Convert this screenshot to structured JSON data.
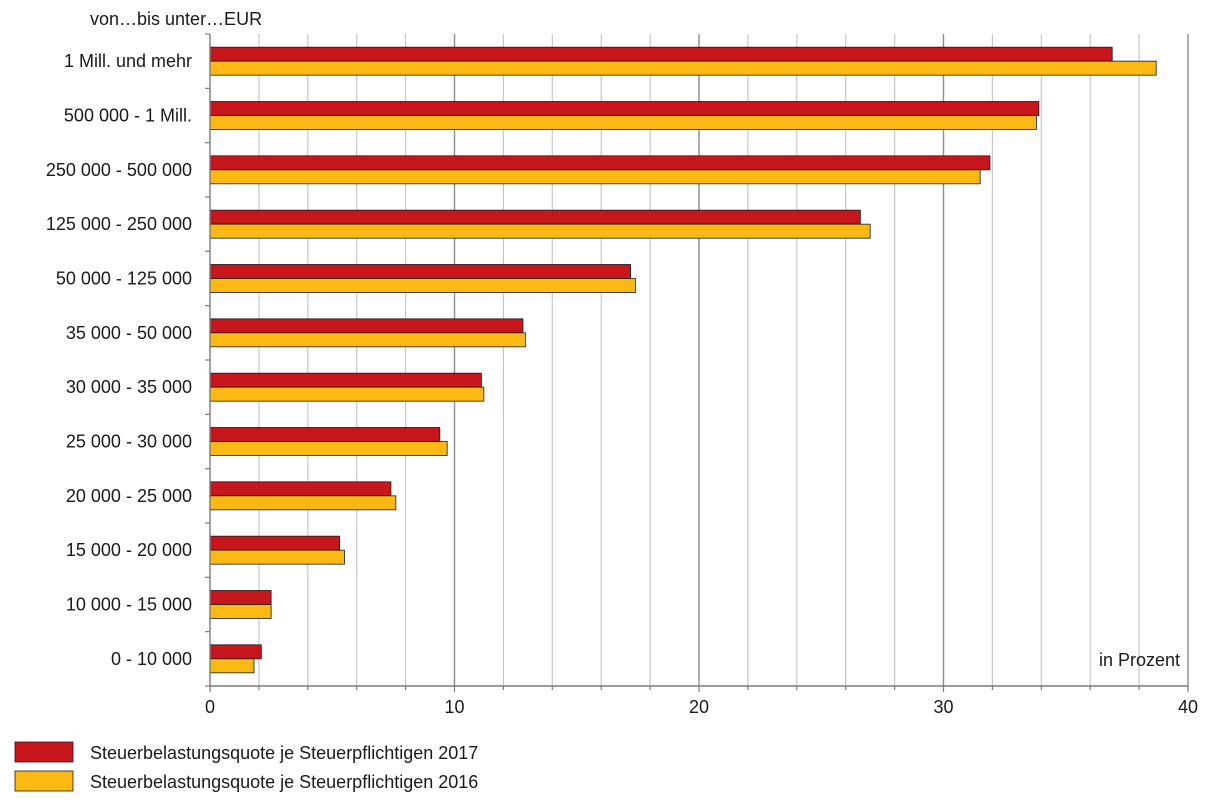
{
  "chart_data": {
    "type": "bar",
    "orientation": "horizontal",
    "y_axis_title": "von…bis unter…EUR",
    "x_axis_unit": "in Prozent",
    "categories": [
      "1 Mill.  und mehr",
      "500 000 - 1 Mill.",
      "250 000 - 500 000",
      "125 000 - 250 000",
      "50 000 - 125 000",
      "35 000 - 50 000",
      "30 000 - 35 000",
      "25 000 - 30 000",
      "20 000 - 25 000",
      "15 000 - 20 000",
      "10 000 - 15 000",
      "0 - 10 000"
    ],
    "series": [
      {
        "name": "Steuerbelastungsquote je Steuerpflichtigen 2017",
        "color": "#c8161d",
        "values": [
          36.9,
          33.9,
          31.9,
          26.6,
          17.2,
          12.8,
          11.1,
          9.4,
          7.4,
          5.3,
          2.5,
          2.1
        ]
      },
      {
        "name": "Steuerbelastungsquote je Steuerpflichtigen 2016",
        "color": "#fdb913",
        "values": [
          38.7,
          33.8,
          31.5,
          27.0,
          17.4,
          12.9,
          11.2,
          9.7,
          7.6,
          5.5,
          2.5,
          1.8
        ]
      }
    ],
    "xlim": [
      0,
      40
    ],
    "x_ticks": [
      "0",
      "10",
      "20",
      "30",
      "40"
    ],
    "x_minor_step": 2,
    "grid": true,
    "legend_position": "bottom-left"
  }
}
